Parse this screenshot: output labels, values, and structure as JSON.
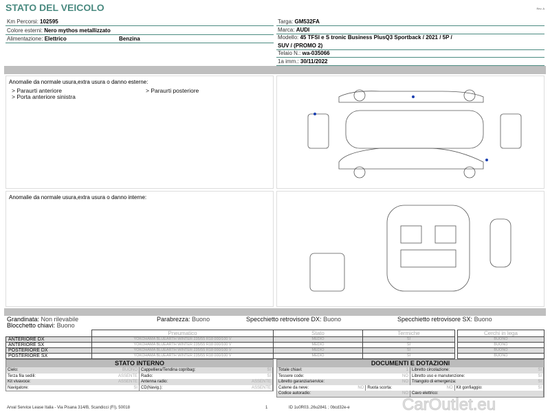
{
  "header": {
    "title": "STATO DEL VEICOLO",
    "rev": "Rev. A"
  },
  "vehicle_left": [
    {
      "label": "Km Percorsi:",
      "value": "102595"
    },
    {
      "label": "Colore esterni:",
      "value": "Nero mythos metallizzato"
    },
    {
      "label": "Alimentazione:",
      "value": "Elettrico",
      "value2": "Benzina"
    }
  ],
  "vehicle_right": {
    "targa": {
      "label": "Targa:",
      "value": "GM532FA"
    },
    "marca": {
      "label": "Marca:",
      "value": "AUDI"
    },
    "modello": {
      "label": "Modello:",
      "value": "45 TFSI e S tronic Business PlusQ3 Sportback / 2021 / 5P /",
      "value_cont": "SUV / (PROMO 2)"
    },
    "telaio": {
      "label": "Telaio N.:",
      "value": "wa-035066"
    },
    "imm": {
      "label": "1a imm.:",
      "value": "30/11/2022"
    }
  },
  "exterior": {
    "heading": "Anomalie da normale usura,extra usura o danno esterne:",
    "items": [
      "> Paraurti anteriore",
      "> Paraurti posteriore",
      "> Porta anteriore sinistra"
    ],
    "marker_color": "#1a3fb0"
  },
  "interior": {
    "heading": "Anomalie da normale usura,extra usura o danno interne:"
  },
  "conditions": {
    "grandinata": {
      "label": "Grandinata:",
      "value": "Non rilevabile"
    },
    "blocchetto": {
      "label": "Blocchetto chiavi:",
      "value": "Buono"
    },
    "parabrezza": {
      "label": "Parabrezza:",
      "value": "Buono"
    },
    "spec_dx": {
      "label": "Specchietto retrovisore DX:",
      "value": "Buono"
    },
    "spec_sx": {
      "label": "Specchietto retrovisore SX:",
      "value": "Buono"
    }
  },
  "tires": {
    "headers": [
      "Pneumatico",
      "Stato",
      "Termiche"
    ],
    "cerchi_header": "Cerchi in lega",
    "rows": [
      {
        "pos": "ANTERIORE DX",
        "tire": "YOKOHAMA BLUEARTH WINTER 235/55 R18 000/100 V",
        "stato": "MEDIO",
        "termiche": "SI",
        "cerchi": "BUONO"
      },
      {
        "pos": "ANTERIORE SX",
        "tire": "YOKOHAMA BLUEARTH WINTER 235/55 R18 000/100 V",
        "stato": "MEDIO",
        "termiche": "SI",
        "cerchi": "BUONO"
      },
      {
        "pos": "POSTERIORE DX",
        "tire": "YOKOHAMA BLUEARTH WINTER 235/55 R18 000/100 V",
        "stato": "MEDIO",
        "termiche": "SI",
        "cerchi": "BUONO"
      },
      {
        "pos": "POSTERIORE SX",
        "tire": "YOKOHAMA BLUEARTH WINTER 235/55 R18 000/100 V",
        "stato": "MEDIO",
        "termiche": "SI",
        "cerchi": "BUONO"
      }
    ]
  },
  "stato_interno": {
    "title": "STATO INTERNO",
    "rows": [
      [
        [
          "Cielo:",
          "BUONO"
        ],
        [
          "Cappelliera/Tendina copribag:",
          "SI"
        ]
      ],
      [
        [
          "Terza fila sedili:",
          "ASSENTE"
        ],
        [
          "Radio:",
          "SI"
        ]
      ],
      [
        [
          "Kit vivavoce:",
          "ASSENTE"
        ],
        [
          "Antenna radio:",
          "ASSENTE"
        ]
      ],
      [
        [
          "Navigatore:",
          "SI"
        ],
        [
          "CD(Navig.):",
          "ASSENTE"
        ]
      ]
    ]
  },
  "documenti": {
    "title": "DOCUMENTI E DOTAZIONI",
    "rows": [
      [
        [
          "Totale chiavi:",
          "1"
        ],
        [
          "Libretto circolazione:",
          "SI"
        ]
      ],
      [
        [
          "Tessere code:",
          "NO"
        ],
        [
          "Libretto uso e manutenzione:",
          "SI"
        ]
      ],
      [
        [
          "Libretto garanzia/service:",
          "NO"
        ],
        [
          "Triangolo di emergenza:",
          "SI"
        ]
      ],
      [
        [
          "Catene da neve:",
          "NO"
        ],
        [
          "Ruota scorta:",
          "NO"
        ],
        [
          "Kit gonfiaggio:",
          "SI"
        ]
      ],
      [
        [
          "Codice autoradio:",
          "NO"
        ],
        [
          "Cavo elettrico:",
          ""
        ]
      ]
    ]
  },
  "footer": {
    "address": "Arval Service Lease Italia - Via Pisana 314/B, Scandicci (FI), 50018",
    "page": "1",
    "id": "ID 1u0R03..26u2841 ; 0bcd32e-e"
  },
  "watermark": "CarOutlet.eu"
}
